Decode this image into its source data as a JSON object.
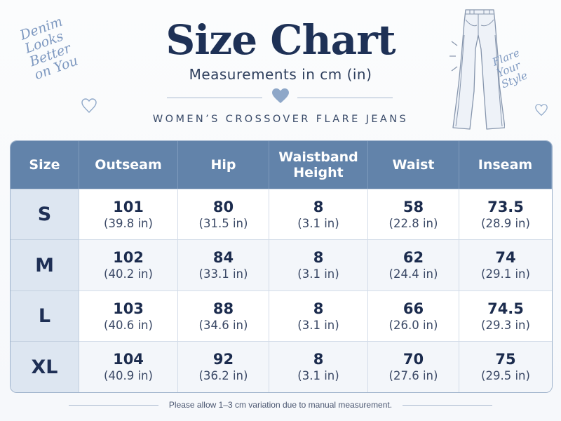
{
  "header": {
    "title": "Size Chart",
    "subtitle": "Measurements in cm (in)",
    "tagline": "WOMEN’S CROSSOVER FLARE JEANS"
  },
  "decor": {
    "left_script": [
      "Denim",
      "Looks",
      "Better",
      "on You"
    ],
    "right_script": [
      "Flare",
      "Your",
      "Style"
    ],
    "illustration": "flare-jeans-sketch"
  },
  "table": {
    "columns": [
      "Size",
      "Outseam",
      "Hip",
      "Waistband Height",
      "Waist",
      "Inseam"
    ],
    "rows": [
      {
        "size": "S",
        "cells": [
          [
            "101",
            "(39.8 in)"
          ],
          [
            "80",
            "(31.5 in)"
          ],
          [
            "8",
            "(3.1 in)"
          ],
          [
            "58",
            "(22.8 in)"
          ],
          [
            "73.5",
            "(28.9 in)"
          ]
        ]
      },
      {
        "size": "M",
        "cells": [
          [
            "102",
            "(40.2 in)"
          ],
          [
            "84",
            "(33.1 in)"
          ],
          [
            "8",
            "(3.1 in)"
          ],
          [
            "62",
            "(24.4 in)"
          ],
          [
            "74",
            "(29.1 in)"
          ]
        ]
      },
      {
        "size": "L",
        "cells": [
          [
            "103",
            "(40.6 in)"
          ],
          [
            "88",
            "(34.6 in)"
          ],
          [
            "8",
            "(3.1 in)"
          ],
          [
            "66",
            "(26.0 in)"
          ],
          [
            "74.5",
            "(29.3 in)"
          ]
        ]
      },
      {
        "size": "XL",
        "cells": [
          [
            "104",
            "(40.9 in)"
          ],
          [
            "92",
            "(36.2 in)"
          ],
          [
            "8",
            "(3.1 in)"
          ],
          [
            "70",
            "(27.6 in)"
          ],
          [
            "75",
            "(29.5 in)"
          ]
        ]
      }
    ]
  },
  "footer": {
    "note": "Please allow 1–3 cm variation due to manual measurement."
  },
  "colors": {
    "header_bg": "#6283aa",
    "size_col_bg": "#dde6f1",
    "title": "#1e3156",
    "accent_script": "#7d98c0"
  }
}
